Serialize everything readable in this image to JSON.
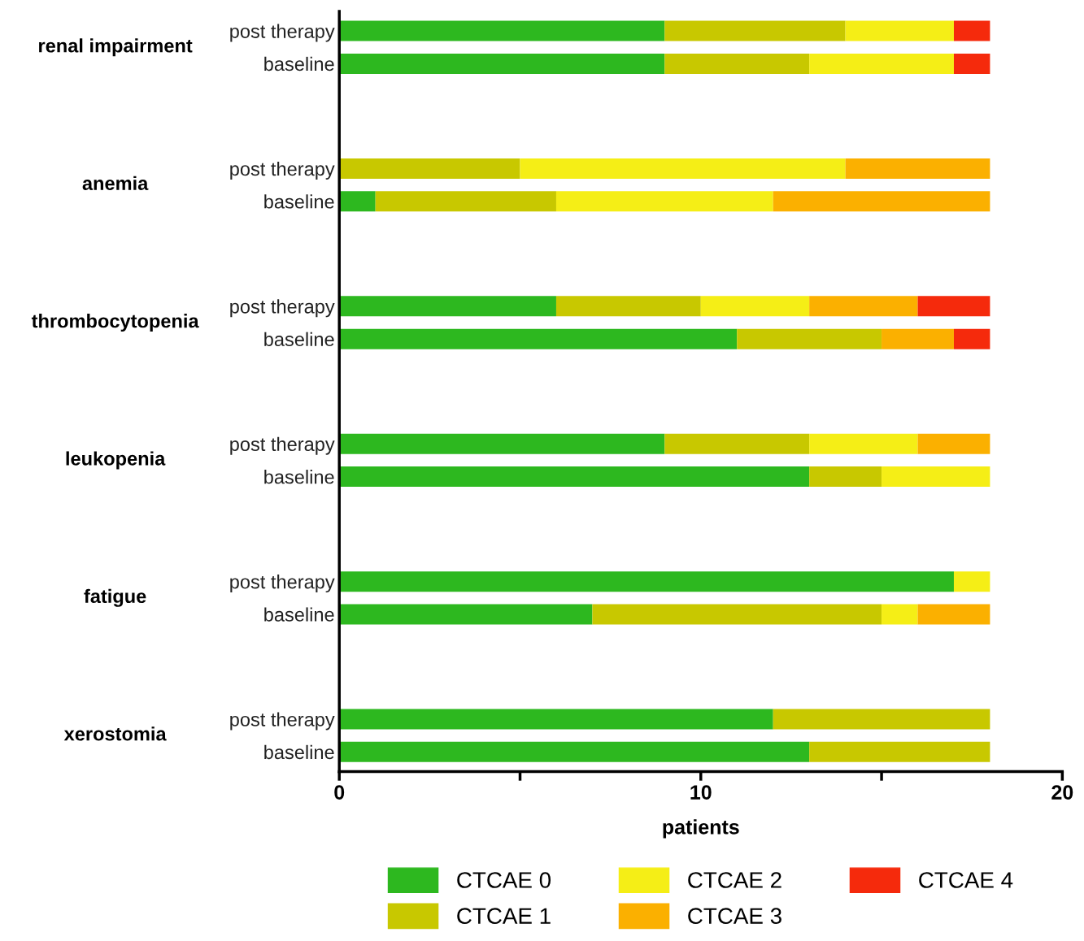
{
  "chart_data": {
    "type": "bar",
    "orientation": "horizontal",
    "stacked": true,
    "categories": [
      "post therapy",
      "baseline",
      "post therapy",
      "baseline",
      "post therapy",
      "baseline",
      "post therapy",
      "baseline",
      "post therapy",
      "baseline",
      "post therapy",
      "baseline"
    ],
    "annotations": [
      "renal impairment",
      "anemia",
      "thrombocytopenia",
      "leukopenia",
      "fatigue",
      "xerostomia"
    ],
    "series": [
      {
        "name": "CTCAE 0",
        "color": "#2db81f",
        "values": [
          9,
          9,
          0,
          1,
          6,
          11,
          9,
          13,
          17,
          7,
          12,
          13
        ]
      },
      {
        "name": "CTCAE 1",
        "color": "#c8c800",
        "values": [
          5,
          4,
          5,
          5,
          4,
          4,
          4,
          2,
          0,
          8,
          6,
          5
        ]
      },
      {
        "name": "CTCAE 2",
        "color": "#f5ee16",
        "values": [
          3,
          4,
          9,
          6,
          3,
          0,
          3,
          3,
          1,
          1,
          0,
          0
        ]
      },
      {
        "name": "CTCAE 3",
        "color": "#fbb000",
        "values": [
          0,
          0,
          4,
          6,
          3,
          2,
          2,
          0,
          0,
          2,
          0,
          0
        ]
      },
      {
        "name": "CTCAE 4",
        "color": "#f52a0c",
        "values": [
          1,
          1,
          0,
          0,
          2,
          1,
          0,
          0,
          0,
          0,
          0,
          0
        ]
      }
    ],
    "xlabel": "patients",
    "xlim": [
      0,
      20
    ],
    "xticks": [
      0,
      {
        "value": 5,
        "label": null
      },
      10,
      {
        "value": 15,
        "label": null
      },
      20
    ],
    "grid": false,
    "legend": "bottom"
  }
}
